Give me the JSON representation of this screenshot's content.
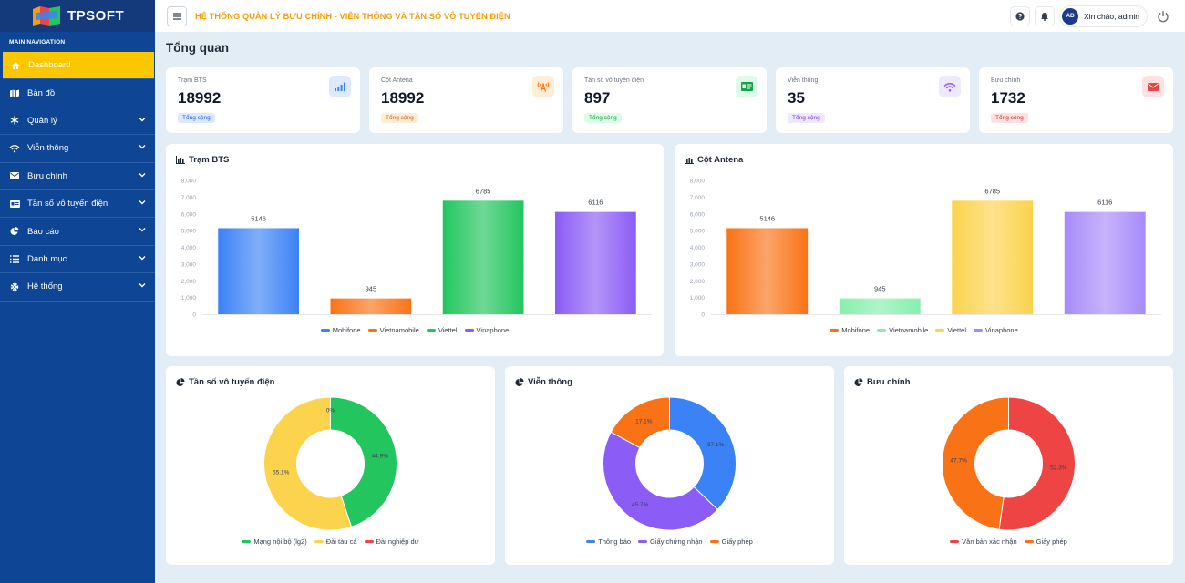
{
  "brand": {
    "name": "TPSOFT"
  },
  "header": {
    "title": "HỆ THỐNG QUẢN LÝ BƯU CHÍNH - VIỄN THÔNG VÀ TẦN SỐ VÔ TUYẾN ĐIỆN",
    "avatar": "AD",
    "greeting": "Xin chào, admin"
  },
  "sidebar": {
    "heading": "MAIN NAVIGATION",
    "items": [
      {
        "label": "Dashboard"
      },
      {
        "label": "Bản đồ"
      },
      {
        "label": "Quản lý"
      },
      {
        "label": "Viễn thông"
      },
      {
        "label": "Bưu chính"
      },
      {
        "label": "Tần số vô tuyến điện"
      },
      {
        "label": "Báo cáo"
      },
      {
        "label": "Danh mục"
      },
      {
        "label": "Hệ thống"
      }
    ]
  },
  "page": {
    "title": "Tổng quan"
  },
  "stats": [
    {
      "label": "Trạm BTS",
      "value": "18992",
      "badge": "Tổng cộng",
      "color": "#3b82f6",
      "bg": "#dbeafe",
      "icon": "signal-bars-icon"
    },
    {
      "label": "Cột Antena",
      "value": "18992",
      "badge": "Tổng cộng",
      "color": "#f97316",
      "bg": "#ffedd5",
      "icon": "antenna-icon"
    },
    {
      "label": "Tần số vô tuyến điện",
      "value": "897",
      "badge": "Tổng cộng",
      "color": "#16a34a",
      "bg": "#dcfce7",
      "icon": "license-card-icon"
    },
    {
      "label": "Viễn thông",
      "value": "35",
      "badge": "Tổng cộng",
      "color": "#8b5cf6",
      "bg": "#ede9fe",
      "icon": "wifi-icon"
    },
    {
      "label": "Bưu chính",
      "value": "1732",
      "badge": "Tổng cộng",
      "color": "#ef4444",
      "bg": "#fee2e2",
      "icon": "envelope-icon"
    }
  ],
  "chart_titles": {
    "bts": "Trạm BTS",
    "antena": "Cột Antena",
    "tanso": "Tần số vô tuyến điện",
    "vienthong": "Viễn thông",
    "buuchinh": "Bưu chính"
  },
  "chart_data": [
    {
      "type": "bar",
      "title": "Trạm BTS",
      "categories": [
        "Mobifone",
        "Vietnamobile",
        "Viettel",
        "Vinaphone"
      ],
      "values": [
        5146,
        945,
        6785,
        6116
      ],
      "colors": [
        "#3b82f6",
        "#f97316",
        "#22c55e",
        "#8b5cf6"
      ],
      "ylim": [
        0,
        8000
      ],
      "yticks": [
        "0",
        "1,000",
        "2,000",
        "3,000",
        "4,000",
        "5,000",
        "6,000",
        "7,000",
        "8,000"
      ],
      "legend": "bottom"
    },
    {
      "type": "bar",
      "title": "Cột Antena",
      "categories": [
        "Mobifone",
        "Vietnamobile",
        "Viettel",
        "Vinaphone"
      ],
      "values": [
        5146,
        945,
        6785,
        6116
      ],
      "colors": [
        "#f97316",
        "#86efac",
        "#fcd34d",
        "#a78bfa"
      ],
      "ylim": [
        0,
        8000
      ],
      "yticks": [
        "0",
        "1,000",
        "2,000",
        "3,000",
        "4,000",
        "5,000",
        "6,000",
        "7,000",
        "8,000"
      ],
      "legend": "bottom"
    },
    {
      "type": "pie",
      "title": "Tần số vô tuyến điện",
      "labels": [
        "Mạng nội bộ (lg2)",
        "Đài tàu cá",
        "Đài nghiệp dư"
      ],
      "values": [
        44.9,
        55.1,
        0
      ],
      "display": [
        "44.9%",
        "55.1%",
        "0%"
      ],
      "colors": [
        "#22c55e",
        "#fcd34d",
        "#ef4444"
      ],
      "legend": "bottom"
    },
    {
      "type": "pie",
      "title": "Viễn thông",
      "labels": [
        "Thông báo",
        "Giấy chứng nhận",
        "Giấy phép"
      ],
      "values": [
        37.1,
        45.7,
        17.1
      ],
      "display": [
        "37.1%",
        "45.7%",
        "17.1%"
      ],
      "colors": [
        "#3b82f6",
        "#8b5cf6",
        "#f97316"
      ],
      "legend": "bottom"
    },
    {
      "type": "pie",
      "title": "Bưu chính",
      "labels": [
        "Văn bản xác nhận",
        "Giấy phép"
      ],
      "values": [
        52.3,
        47.7
      ],
      "display": [
        "52.3%",
        "47.7%"
      ],
      "colors": [
        "#ef4444",
        "#f97316"
      ],
      "legend": "bottom"
    }
  ]
}
